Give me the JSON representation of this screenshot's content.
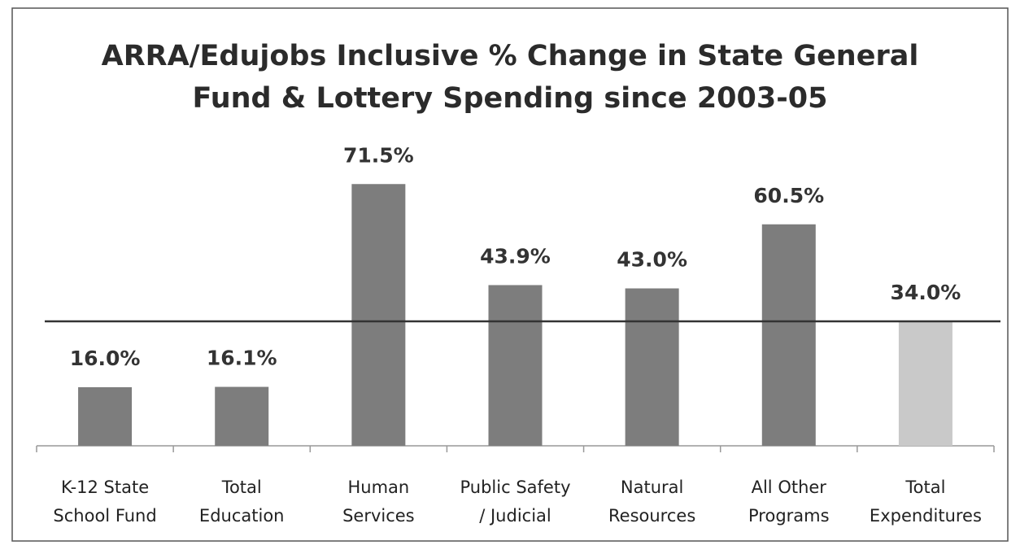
{
  "chart_data": {
    "type": "bar",
    "title": [
      "ARRA/Edujobs Inclusive % Change in State General",
      "Fund & Lottery Spending since 2003-05"
    ],
    "categories": [
      [
        "K-12 State",
        "School Fund"
      ],
      [
        "Total",
        "Education"
      ],
      [
        "Human",
        "Services"
      ],
      [
        "Public Safety",
        "/ Judicial"
      ],
      [
        "Natural",
        "Resources"
      ],
      [
        "All Other",
        "Programs"
      ],
      [
        "Total",
        "Expenditures"
      ]
    ],
    "values": [
      16.0,
      16.1,
      71.5,
      43.9,
      43.0,
      60.5,
      34.0
    ],
    "value_labels": [
      "16.0%",
      "16.1%",
      "71.5%",
      "43.9%",
      "43.0%",
      "60.5%",
      "34.0%"
    ],
    "colors": [
      "#7d7d7d",
      "#7d7d7d",
      "#7d7d7d",
      "#7d7d7d",
      "#7d7d7d",
      "#7d7d7d",
      "#c9c9c9"
    ],
    "ylim": [
      0,
      80
    ]
  }
}
